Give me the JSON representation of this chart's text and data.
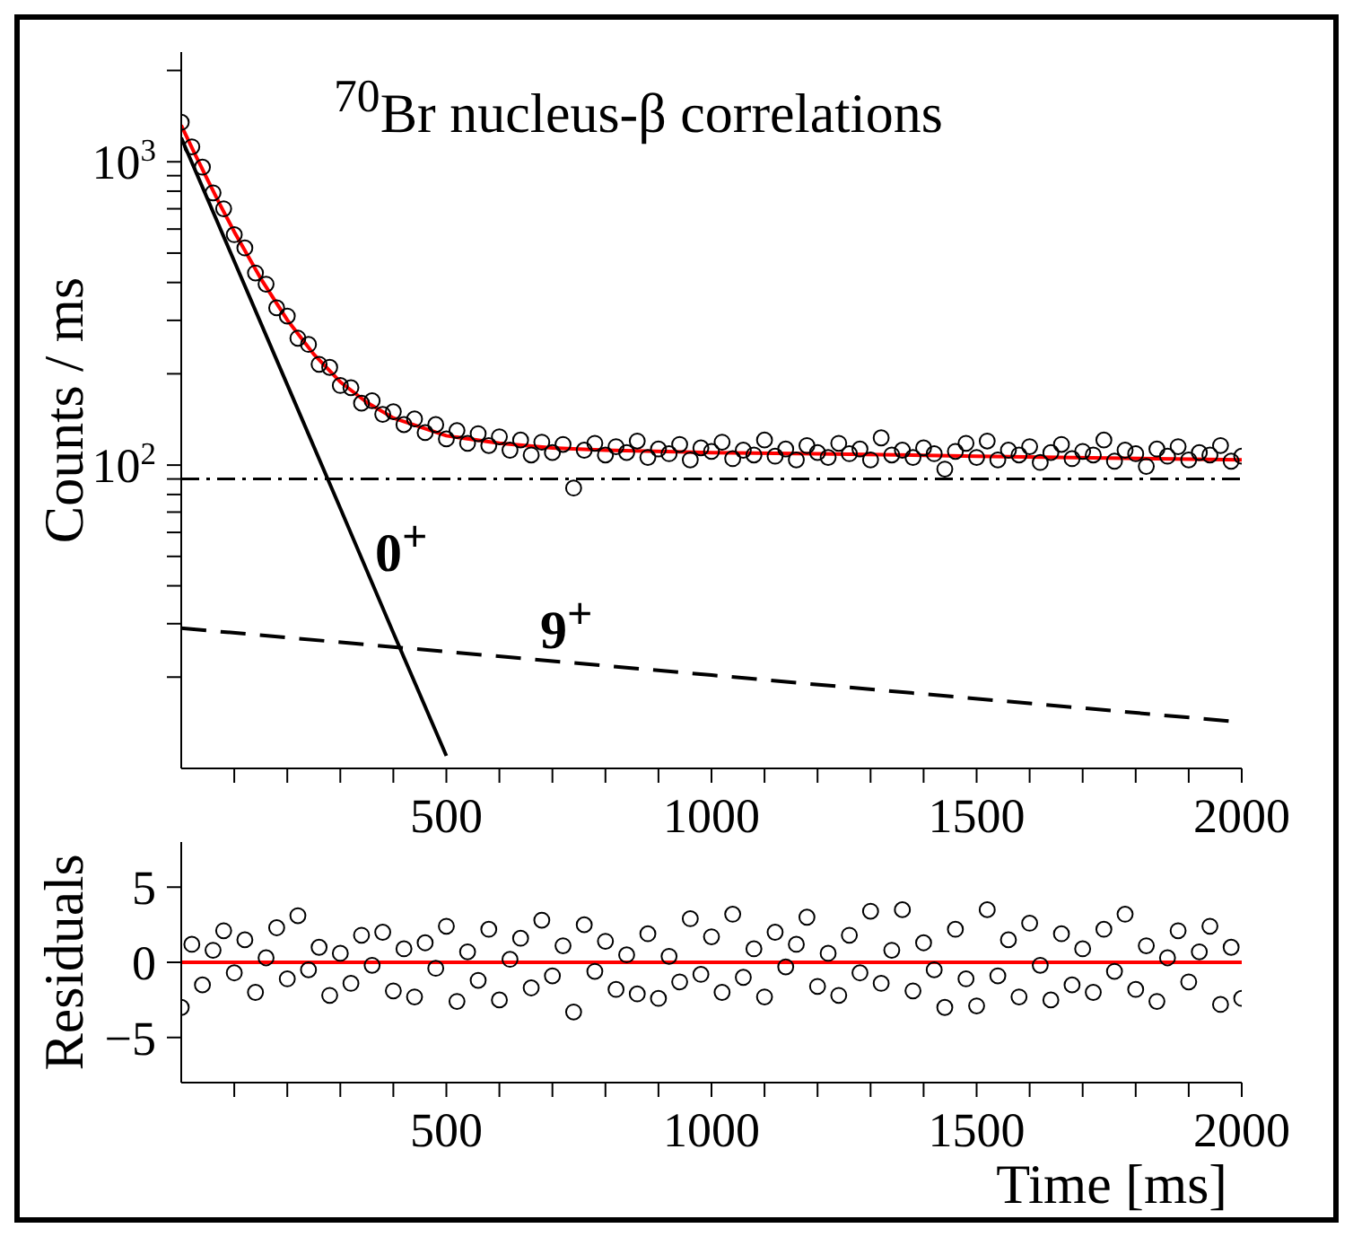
{
  "chart_data": [
    {
      "type": "scatter",
      "title": "$^{70}$Br nucleus-β correlations",
      "ylabel": "Counts / ms",
      "xlim": [
        0,
        2000
      ],
      "xticks": [
        {
          "value": 100,
          "label": null
        },
        {
          "value": 200,
          "label": null
        },
        {
          "value": 300,
          "label": null
        },
        {
          "value": 400,
          "label": null
        },
        500,
        {
          "value": 600,
          "label": null
        },
        {
          "value": 700,
          "label": null
        },
        {
          "value": 800,
          "label": null
        },
        {
          "value": 900,
          "label": null
        },
        1000,
        {
          "value": 1100,
          "label": null
        },
        {
          "value": 1200,
          "label": null
        },
        {
          "value": 1300,
          "label": null
        },
        {
          "value": 1400,
          "label": null
        },
        1500,
        {
          "value": 1600,
          "label": null
        },
        {
          "value": 1700,
          "label": null
        },
        {
          "value": 1800,
          "label": null
        },
        {
          "value": 1900,
          "label": null
        },
        2000
      ],
      "ylim": [
        10,
        2300
      ],
      "yticks": [
        {
          "value": 20,
          "label": null
        },
        {
          "value": 30,
          "label": null
        },
        {
          "value": 40,
          "label": null
        },
        {
          "value": 50,
          "label": null
        },
        {
          "value": 60,
          "label": null
        },
        {
          "value": 70,
          "label": null
        },
        {
          "value": 80,
          "label": null
        },
        {
          "value": 90,
          "label": null
        },
        {
          "value": 100,
          "label": "10$^{2}$"
        },
        {
          "value": 200,
          "label": null
        },
        {
          "value": 300,
          "label": null
        },
        {
          "value": 400,
          "label": null
        },
        {
          "value": 500,
          "label": null
        },
        {
          "value": 600,
          "label": null
        },
        {
          "value": 700,
          "label": null
        },
        {
          "value": 800,
          "label": null
        },
        {
          "value": 900,
          "label": null
        },
        {
          "value": 1000,
          "label": "10$^{3}$"
        },
        {
          "value": 2000,
          "label": null
        }
      ],
      "log": "y",
      "annotations": [
        "0$^{+}$",
        "9$^{+}$"
      ],
      "ref_lines": [
        {
          "axis": "y",
          "value": 90,
          "line_style": "dotted",
          "color": "#000000"
        }
      ],
      "series": [
        {
          "marker": "circle",
          "color": "#000000",
          "x": [
            0,
            20,
            40,
            60,
            80,
            100,
            120,
            140,
            160,
            180,
            200,
            220,
            240,
            260,
            280,
            300,
            320,
            340,
            360,
            380,
            400,
            420,
            440,
            460,
            480,
            500,
            520,
            540,
            560,
            580,
            600,
            620,
            640,
            660,
            680,
            700,
            720,
            740,
            760,
            780,
            800,
            820,
            840,
            860,
            880,
            900,
            920,
            940,
            960,
            980,
            1000,
            1020,
            1040,
            1060,
            1080,
            1100,
            1120,
            1140,
            1160,
            1180,
            1200,
            1220,
            1240,
            1260,
            1280,
            1300,
            1320,
            1340,
            1360,
            1380,
            1400,
            1420,
            1440,
            1460,
            1480,
            1500,
            1520,
            1540,
            1560,
            1580,
            1600,
            1620,
            1640,
            1660,
            1680,
            1700,
            1720,
            1740,
            1760,
            1780,
            1800,
            1820,
            1840,
            1860,
            1880,
            1900,
            1920,
            1940,
            1960,
            1980,
            2000
          ],
          "values": [
            1350,
            1120,
            960,
            790,
            700,
            575,
            520,
            430,
            395,
            330,
            310,
            262,
            250,
            215,
            210,
            183,
            180,
            160,
            163,
            147,
            150,
            136,
            142,
            128,
            136,
            122,
            130,
            118,
            127,
            116,
            124,
            112,
            121,
            108,
            119,
            110,
            117,
            84,
            112,
            118,
            108,
            115,
            110,
            120,
            106,
            113,
            109,
            117,
            104,
            114,
            111,
            119,
            105,
            112,
            108,
            121,
            107,
            113,
            104,
            116,
            110,
            106,
            118,
            109,
            113,
            104,
            123,
            108,
            112,
            106,
            114,
            109,
            97,
            111,
            118,
            106,
            120,
            104,
            112,
            108,
            115,
            102,
            110,
            117,
            105,
            111,
            108,
            121,
            103,
            112,
            109,
            99,
            113,
            107,
            115,
            104,
            110,
            108,
            116,
            103,
            107
          ]
        },
        {
          "type": "line",
          "color": "#ff0000",
          "x": [
            0,
            25,
            50,
            75,
            100,
            150,
            200,
            250,
            300,
            350,
            400,
            500,
            600,
            700,
            800,
            1000,
            1200,
            1500,
            2000
          ],
          "values": [
            1319,
            1068,
            870,
            712,
            588,
            412,
            301,
            232,
            188,
            161,
            143,
            125,
            118,
            114,
            112,
            110,
            109,
            107,
            104
          ]
        },
        {
          "type": "line",
          "color": "#000000",
          "x": [
            0,
            100,
            200,
            300,
            400,
            500
          ],
          "values": [
            1200,
            470,
            184,
            72,
            28,
            11
          ]
        },
        {
          "type": "line",
          "color": "#000000",
          "line_style": "dashed",
          "x": [
            0,
            1000,
            2000
          ],
          "values": [
            29,
            20.3,
            14.2
          ]
        }
      ]
    },
    {
      "type": "scatter",
      "ylabel": "Residuals",
      "xlabel": "Time [ms]",
      "xlim": [
        0,
        2000
      ],
      "xticks": [
        {
          "value": 100,
          "label": null
        },
        {
          "value": 200,
          "label": null
        },
        {
          "value": 300,
          "label": null
        },
        {
          "value": 400,
          "label": null
        },
        500,
        {
          "value": 600,
          "label": null
        },
        {
          "value": 700,
          "label": null
        },
        {
          "value": 800,
          "label": null
        },
        {
          "value": 900,
          "label": null
        },
        1000,
        {
          "value": 1100,
          "label": null
        },
        {
          "value": 1200,
          "label": null
        },
        {
          "value": 1300,
          "label": null
        },
        {
          "value": 1400,
          "label": null
        },
        1500,
        {
          "value": 1600,
          "label": null
        },
        {
          "value": 1700,
          "label": null
        },
        {
          "value": 1800,
          "label": null
        },
        {
          "value": 1900,
          "label": null
        },
        2000
      ],
      "ylim": [
        -8,
        8
      ],
      "yticks": [
        {
          "value": -5,
          "label": "−5"
        },
        0,
        5
      ],
      "series": [
        {
          "marker": "circle",
          "color": "#000000",
          "x": [
            0,
            20,
            40,
            60,
            80,
            100,
            120,
            140,
            160,
            180,
            200,
            220,
            240,
            260,
            280,
            300,
            320,
            340,
            360,
            380,
            400,
            420,
            440,
            460,
            480,
            500,
            520,
            540,
            560,
            580,
            600,
            620,
            640,
            660,
            680,
            700,
            720,
            740,
            760,
            780,
            800,
            820,
            840,
            860,
            880,
            900,
            920,
            940,
            960,
            980,
            1000,
            1020,
            1040,
            1060,
            1080,
            1100,
            1120,
            1140,
            1160,
            1180,
            1200,
            1220,
            1240,
            1260,
            1280,
            1300,
            1320,
            1340,
            1360,
            1380,
            1400,
            1420,
            1440,
            1460,
            1480,
            1500,
            1520,
            1540,
            1560,
            1580,
            1600,
            1620,
            1640,
            1660,
            1680,
            1700,
            1720,
            1740,
            1760,
            1780,
            1800,
            1820,
            1840,
            1860,
            1880,
            1900,
            1920,
            1940,
            1960,
            1980,
            2000
          ],
          "values": [
            -3.0,
            1.2,
            -1.5,
            0.8,
            2.1,
            -0.7,
            1.5,
            -2.0,
            0.3,
            2.3,
            -1.1,
            3.1,
            -0.5,
            1.0,
            -2.2,
            0.6,
            -1.4,
            1.8,
            -0.2,
            2.0,
            -1.9,
            0.9,
            -2.3,
            1.3,
            -0.4,
            2.4,
            -2.6,
            0.7,
            -1.2,
            2.2,
            -2.5,
            0.2,
            1.6,
            -1.7,
            2.8,
            -0.9,
            1.1,
            -3.3,
            2.5,
            -0.6,
            1.4,
            -1.8,
            0.5,
            -2.1,
            1.9,
            -2.4,
            0.4,
            -1.3,
            2.9,
            -0.8,
            1.7,
            -2.0,
            3.2,
            -1.0,
            0.9,
            -2.3,
            2.0,
            -0.3,
            1.2,
            3.0,
            -1.6,
            0.6,
            -2.2,
            1.8,
            -0.7,
            3.4,
            -1.4,
            0.8,
            3.5,
            -1.9,
            1.3,
            -0.5,
            -3.0,
            2.2,
            -1.1,
            -2.9,
            3.5,
            -0.9,
            1.5,
            -2.3,
            2.6,
            -0.2,
            -2.5,
            1.9,
            -1.5,
            0.9,
            -2.0,
            2.2,
            -0.6,
            3.2,
            -1.8,
            1.1,
            -2.6,
            0.3,
            2.1,
            -1.3,
            0.7,
            2.4,
            -2.8,
            1.0,
            -2.4
          ]
        },
        {
          "type": "line",
          "color": "#ff0000",
          "x": [
            0,
            2000
          ],
          "values": [
            0,
            0
          ]
        }
      ]
    }
  ]
}
